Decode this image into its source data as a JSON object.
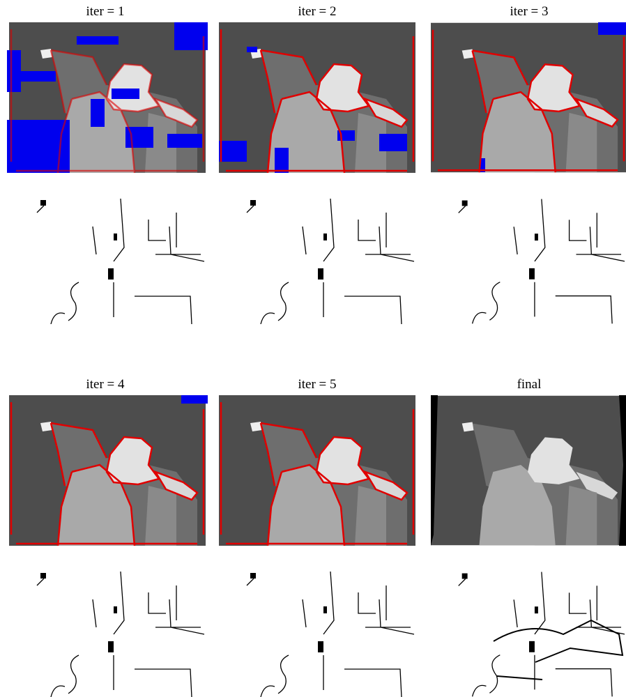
{
  "panels": [
    {
      "label": "iter = 1"
    },
    {
      "label": "iter = 2"
    },
    {
      "label": "iter = 3"
    },
    {
      "label": "iter = 4"
    },
    {
      "label": "iter = 5"
    },
    {
      "label": "final"
    }
  ]
}
